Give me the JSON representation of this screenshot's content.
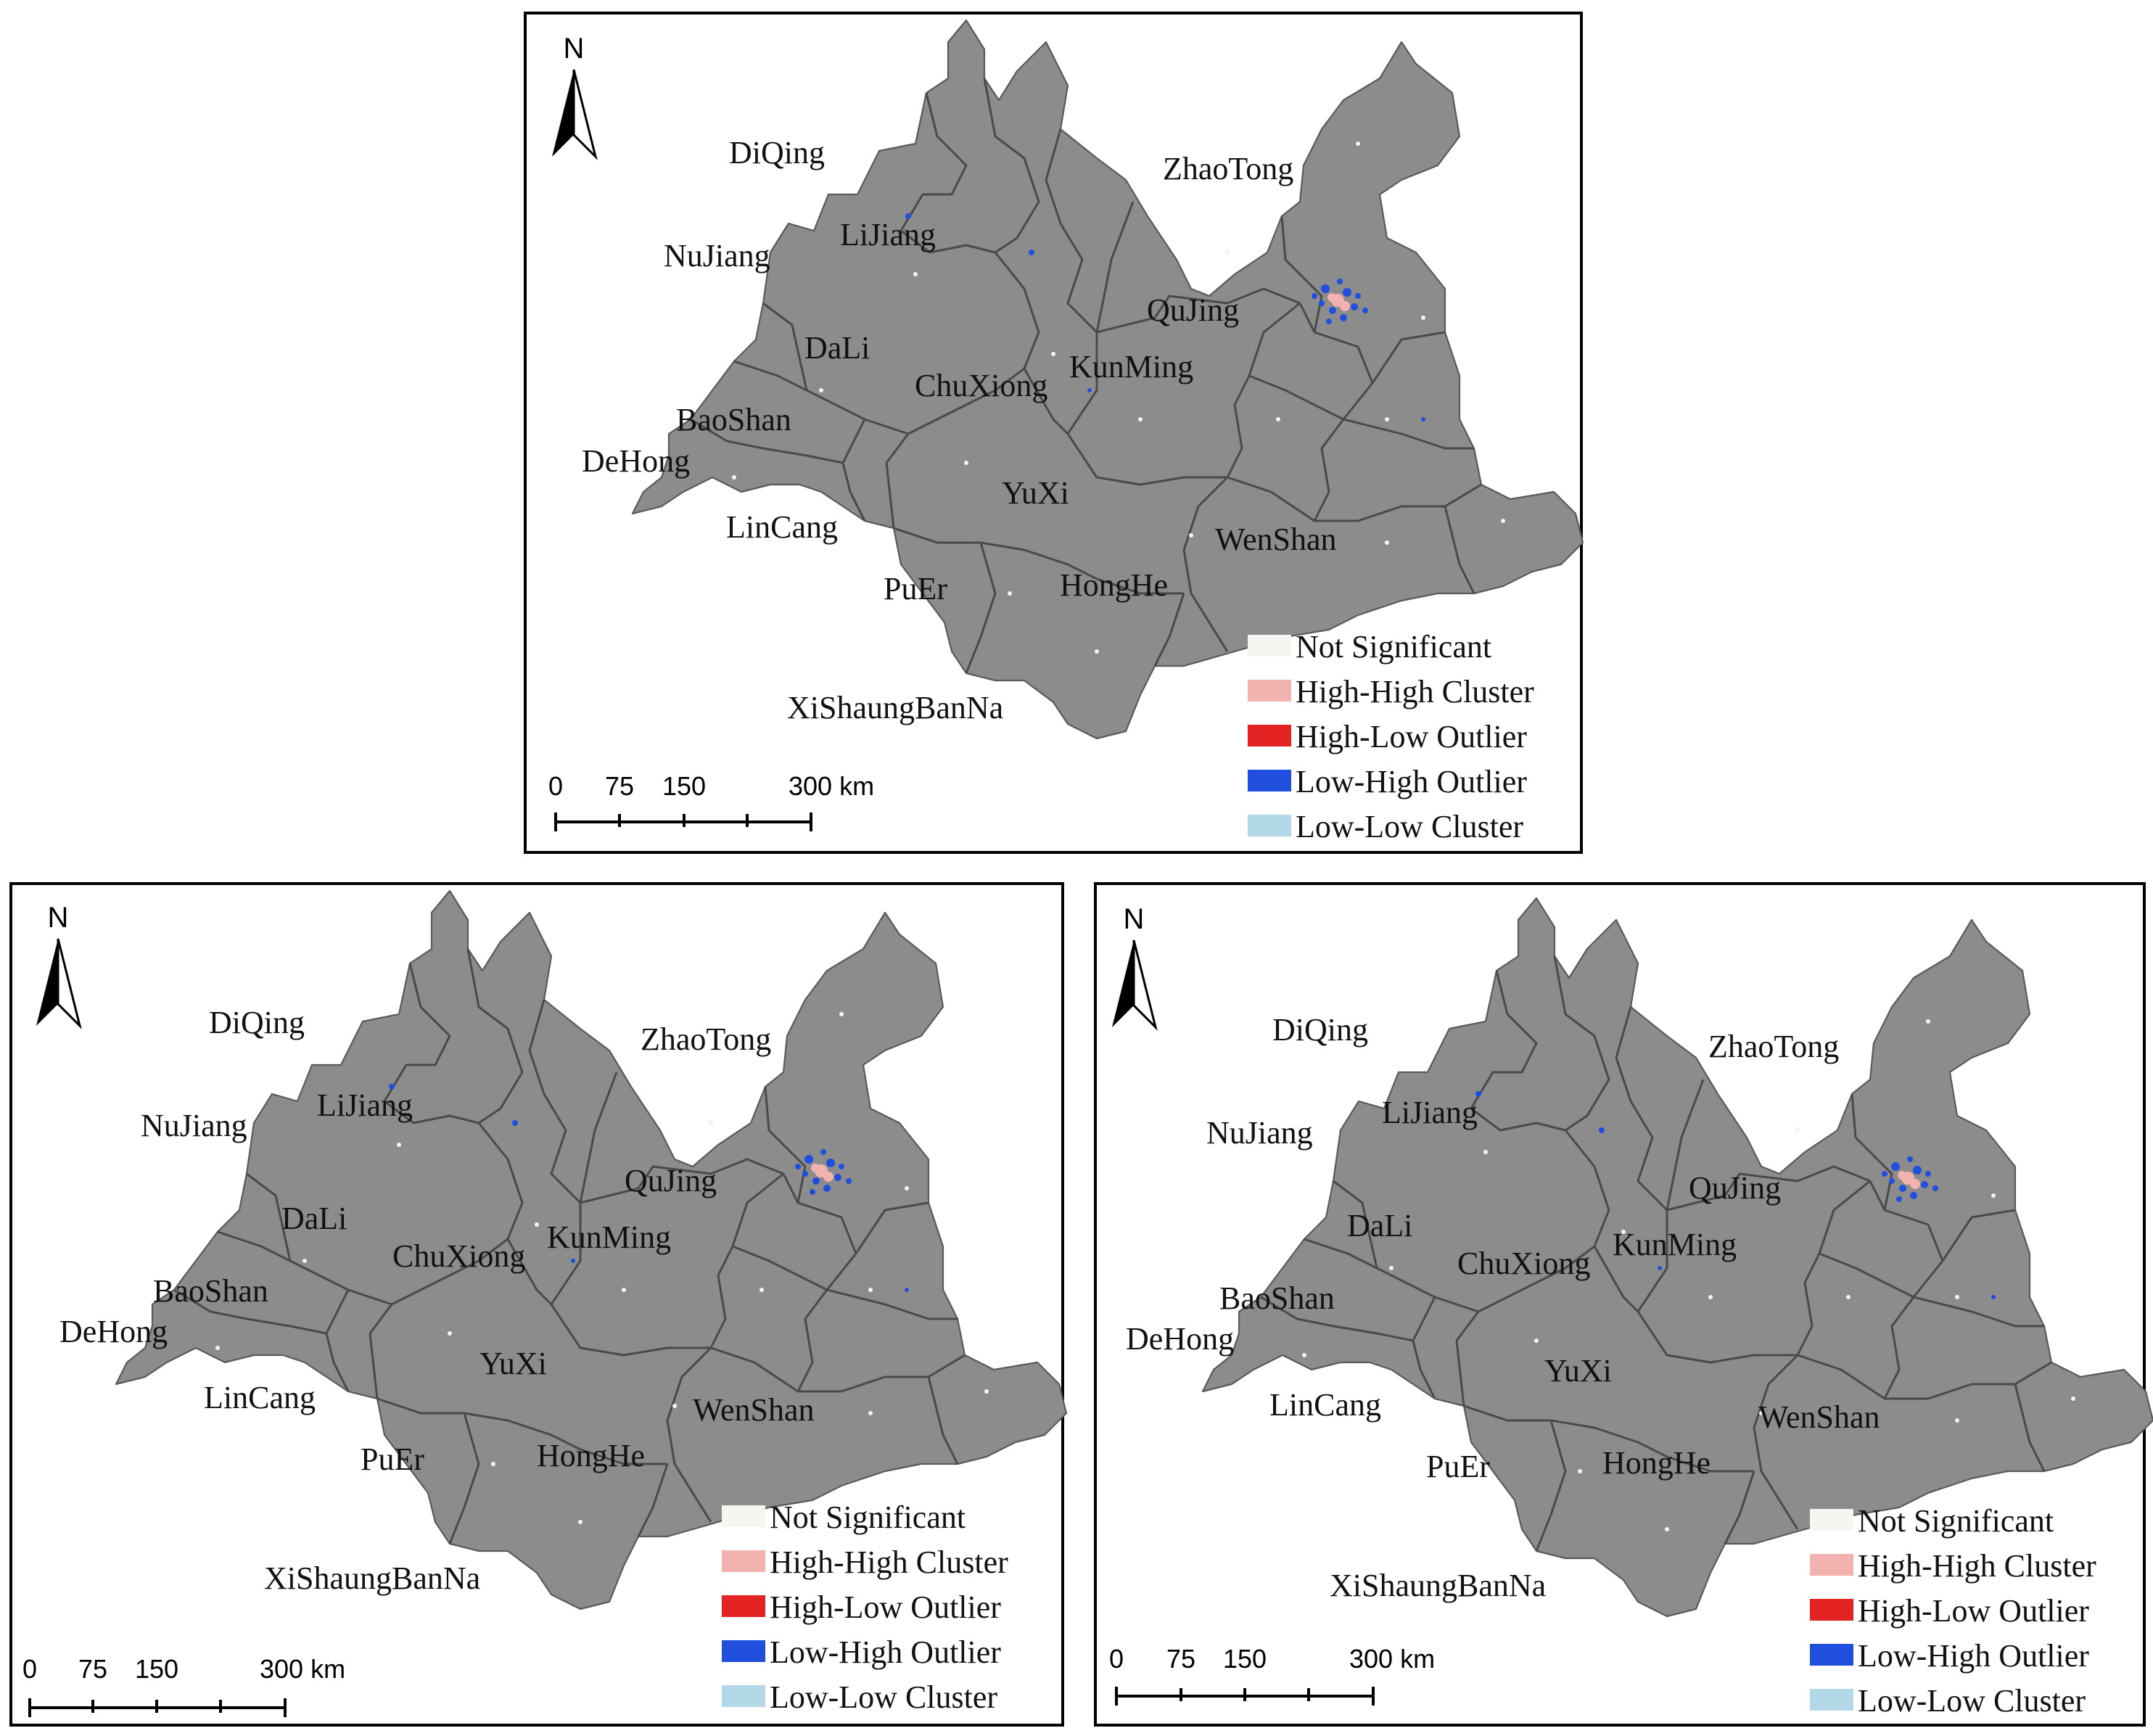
{
  "prefectures": [
    "DiQing",
    "ZhaoTong",
    "LiJiang",
    "NuJiang",
    "QuJing",
    "DaLi",
    "ChuXiong",
    "KunMing",
    "BaoShan",
    "DeHong",
    "YuXi",
    "LinCang",
    "WenShan",
    "PuEr",
    "HongHe",
    "XiShaungBanNa"
  ],
  "legend": [
    {
      "label": "Not Significant",
      "color": "#f4f6f1"
    },
    {
      "label": "High-High Cluster",
      "color": "#f2b3b0"
    },
    {
      "label": "High-Low Outlier",
      "color": "#e32222"
    },
    {
      "label": "Low-High Outlier",
      "color": "#1f4fdc"
    },
    {
      "label": "Low-Low Cluster",
      "color": "#b3d8e8"
    }
  ],
  "north_arrow": "N",
  "scale_bar": {
    "ticks": [
      "0",
      "75",
      "150",
      "300 km"
    ]
  },
  "panels": [
    {
      "id": "top"
    },
    {
      "id": "bottom-left"
    },
    {
      "id": "bottom-right"
    }
  ]
}
